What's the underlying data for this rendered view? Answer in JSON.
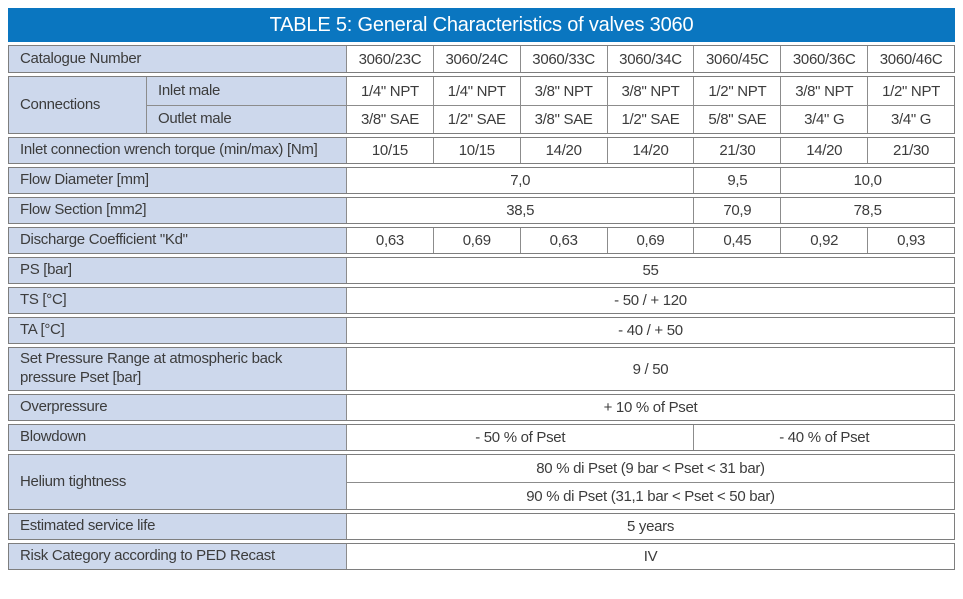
{
  "title": "TABLE 5: General Characteristics of valves 3060",
  "colors": {
    "header_bg": "#0a76c0",
    "label_bg": "#cdd8ec",
    "border": "#7e7e7e",
    "sep": "#8c8c8c",
    "text": "#3c3c3c",
    "title_text": "#ffffff"
  },
  "catalogue": {
    "label": "Catalogue Number",
    "values": [
      "3060/23C",
      "3060/24C",
      "3060/33C",
      "3060/34C",
      "3060/45C",
      "3060/36C",
      "3060/46C"
    ]
  },
  "connections": {
    "label": "Connections",
    "inlet": {
      "label": "Inlet male",
      "values": [
        "1/4\" NPT",
        "1/4\" NPT",
        "3/8\" NPT",
        "3/8\" NPT",
        "1/2\" NPT",
        "3/8\" NPT",
        "1/2\" NPT"
      ]
    },
    "outlet": {
      "label": "Outlet male",
      "values": [
        "3/8\" SAE",
        "1/2\" SAE",
        "3/8\" SAE",
        "1/2\" SAE",
        "5/8\" SAE",
        "3/4\" G",
        "3/4\" G"
      ]
    }
  },
  "wrench_torque": {
    "label": "Inlet connection wrench torque (min/max) [Nm]",
    "values": [
      "10/15",
      "10/15",
      "14/20",
      "14/20",
      "21/30",
      "14/20",
      "21/30"
    ]
  },
  "flow_diameter": {
    "label": "Flow Diameter [mm]",
    "values": [
      "7,0",
      "9,5",
      "10,0"
    ]
  },
  "flow_section": {
    "label": "Flow Section [mm2]",
    "values": [
      "38,5",
      "70,9",
      "78,5"
    ]
  },
  "discharge_coefficient": {
    "label": "Discharge Coefficient \"Kd\"",
    "values": [
      "0,63",
      "0,69",
      "0,63",
      "0,69",
      "0,45",
      "0,92",
      "0,93"
    ]
  },
  "ps": {
    "label": "PS [bar]",
    "value": "55"
  },
  "ts": {
    "label": "TS [°C]",
    "value": "- 50  /  + 120"
  },
  "ta": {
    "label": "TA [°C]",
    "value": "- 40  /  + 50"
  },
  "set_pressure_range": {
    "label": "Set Pressure Range at atmospheric back pressure Pset [bar]",
    "value": "9  /  50"
  },
  "overpressure": {
    "label": "Overpressure",
    "value": "+ 10 % of Pset"
  },
  "blowdown": {
    "label": "Blowdown",
    "values": [
      "- 50 % of Pset",
      "- 40 % of Pset"
    ]
  },
  "helium_tightness": {
    "label": "Helium tightness",
    "rows": [
      "80 % di Pset   (9 bar < Pset < 31 bar)",
      "90 % di Pset   (31,1 bar < Pset < 50 bar)"
    ]
  },
  "estimated_service_life": {
    "label": "Estimated service life",
    "value": "5 years"
  },
  "risk_category": {
    "label": "Risk Category according to PED Recast",
    "value": "IV"
  }
}
